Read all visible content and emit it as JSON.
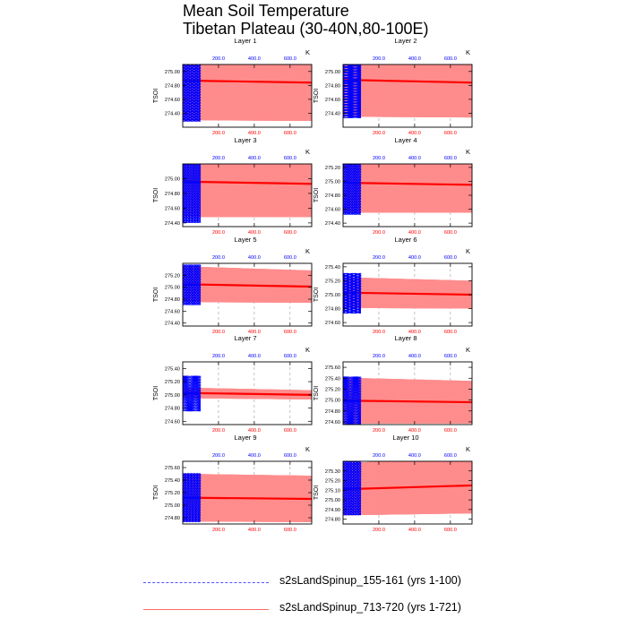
{
  "title_line1": "Mean Soil Temperature",
  "title_line2": "Tibetan Plateau (30-40N,80-100E)",
  "colors": {
    "series_a": "#0000ff",
    "series_b": "#ff0000",
    "series_b_light": "#ff8c8c"
  },
  "chart_data": {
    "type": "line",
    "ylabel": "TSOI",
    "unit_label": "K",
    "panels": [
      {
        "title": "Layer 1",
        "ylim": [
          274.2,
          275.1
        ],
        "yticks": [
          274.4,
          274.6,
          274.8,
          275.0
        ],
        "ytick_labels": [
          "274.40",
          "274.60",
          "274.80",
          "275.00"
        ],
        "blue": {
          "mean": 274.86,
          "amp": 0.58
        },
        "red": {
          "mean_start": 274.87,
          "mean_end": 274.84,
          "amp_start": 0.57,
          "amp_end": 0.55
        }
      },
      {
        "title": "Layer 2",
        "ylim": [
          274.2,
          275.1
        ],
        "yticks": [
          274.4,
          274.6,
          274.8,
          275.0
        ],
        "ytick_labels": [
          "274.40",
          "274.60",
          "274.80",
          "275.00"
        ],
        "blue": {
          "mean": 274.86,
          "amp": 0.53
        },
        "red": {
          "mean_start": 274.88,
          "mean_end": 274.84,
          "amp_start": 0.53,
          "amp_end": 0.5
        }
      },
      {
        "title": "Layer 3",
        "ylim": [
          274.35,
          275.2
        ],
        "yticks": [
          274.4,
          274.6,
          274.8,
          275.0
        ],
        "ytick_labels": [
          "274.40",
          "274.60",
          "274.80",
          "275.00"
        ],
        "blue": {
          "mean": 274.95,
          "amp": 0.55
        },
        "red": {
          "mean_start": 274.96,
          "mean_end": 274.93,
          "amp_start": 0.48,
          "amp_end": 0.45
        }
      },
      {
        "title": "Layer 4",
        "ylim": [
          274.35,
          275.25
        ],
        "yticks": [
          274.4,
          274.6,
          274.8,
          275.0,
          275.2
        ],
        "ytick_labels": [
          "274.40",
          "274.60",
          "274.80",
          "275.00",
          "275.20"
        ],
        "blue": {
          "mean": 274.98,
          "amp": 0.46
        },
        "red": {
          "mean_start": 274.98,
          "mean_end": 274.95,
          "amp_start": 0.43,
          "amp_end": 0.4
        }
      },
      {
        "title": "Layer 5",
        "ylim": [
          274.35,
          275.4
        ],
        "yticks": [
          274.4,
          274.6,
          274.8,
          275.0,
          275.2
        ],
        "ytick_labels": [
          "274.40",
          "274.60",
          "274.80",
          "275.00",
          "275.20"
        ],
        "blue": {
          "mean": 275.04,
          "amp": 0.34
        },
        "red": {
          "mean_start": 275.05,
          "mean_end": 275.01,
          "amp_start": 0.3,
          "amp_end": 0.27
        }
      },
      {
        "title": "Layer 6",
        "ylim": [
          274.55,
          275.45
        ],
        "yticks": [
          274.6,
          274.8,
          275.0,
          275.2,
          275.4
        ],
        "ytick_labels": [
          "274.60",
          "274.80",
          "275.00",
          "275.20",
          "275.40"
        ],
        "blue": {
          "mean": 275.02,
          "amp": 0.29
        },
        "red": {
          "mean_start": 275.03,
          "mean_end": 275.0,
          "amp_start": 0.22,
          "amp_end": 0.2
        }
      },
      {
        "title": "Layer 7",
        "ylim": [
          274.55,
          275.5
        ],
        "yticks": [
          274.6,
          274.8,
          275.0,
          275.2,
          275.4
        ],
        "ytick_labels": [
          "274.60",
          "274.80",
          "275.00",
          "275.20",
          "275.40"
        ],
        "blue": {
          "mean": 275.02,
          "amp": 0.27
        },
        "red": {
          "mean_start": 275.03,
          "mean_end": 275.0,
          "amp_start": 0.08,
          "amp_end": 0.07
        }
      },
      {
        "title": "Layer 8",
        "ylim": [
          274.55,
          275.7
        ],
        "yticks": [
          274.6,
          274.8,
          275.0,
          275.2,
          275.4,
          275.6
        ],
        "ytick_labels": [
          "274.60",
          "274.80",
          "275.00",
          "275.20",
          "275.40",
          "275.60"
        ],
        "blue": {
          "mean": 274.98,
          "amp": 0.45
        },
        "red": {
          "mean_start": 274.99,
          "mean_end": 274.96,
          "amp_start": 0.42,
          "amp_end": 0.39
        }
      },
      {
        "title": "Layer 9",
        "ylim": [
          274.7,
          275.7
        ],
        "yticks": [
          274.8,
          275.0,
          275.2,
          275.4,
          275.6
        ],
        "ytick_labels": [
          "274.80",
          "275.00",
          "275.20",
          "275.40",
          "275.60"
        ],
        "blue": {
          "mean": 275.12,
          "amp": 0.39
        },
        "red": {
          "mean_start": 275.12,
          "mean_end": 275.1,
          "amp_start": 0.38,
          "amp_end": 0.37
        }
      },
      {
        "title": "Layer 10",
        "ylim": [
          274.75,
          275.4
        ],
        "yticks": [
          274.8,
          274.9,
          275.0,
          275.1,
          275.2,
          275.3
        ],
        "ytick_labels": [
          "274.80",
          "274.90",
          "275.00",
          "275.10",
          "275.20",
          "275.30"
        ],
        "blue": {
          "mean": 275.12,
          "amp": 0.28
        },
        "red": {
          "mean_start": 275.11,
          "mean_end": 275.15,
          "amp_start": 0.27,
          "amp_end": 0.29
        }
      }
    ],
    "top_axis": {
      "range": [
        0,
        100
      ],
      "ticks": [
        200,
        400,
        600
      ],
      "tick_labels": [
        "200.0",
        "400.0",
        "600.0"
      ],
      "color": "#0000ff"
    },
    "bottom_axis": {
      "range": [
        0,
        721
      ],
      "ticks": [
        200,
        400,
        600
      ],
      "tick_labels": [
        "200.0",
        "400.0",
        "600.0"
      ],
      "color": "#ff0000"
    },
    "blue_end_year": 100,
    "series": [
      {
        "name": "s2sLandSpinup_155-161 (yrs 1-100)",
        "style": "dashed",
        "color": "#0000ff"
      },
      {
        "name": "s2sLandSpinup_713-720 (yrs 1-721)",
        "style": "solid",
        "color": "#ff0000"
      }
    ]
  }
}
